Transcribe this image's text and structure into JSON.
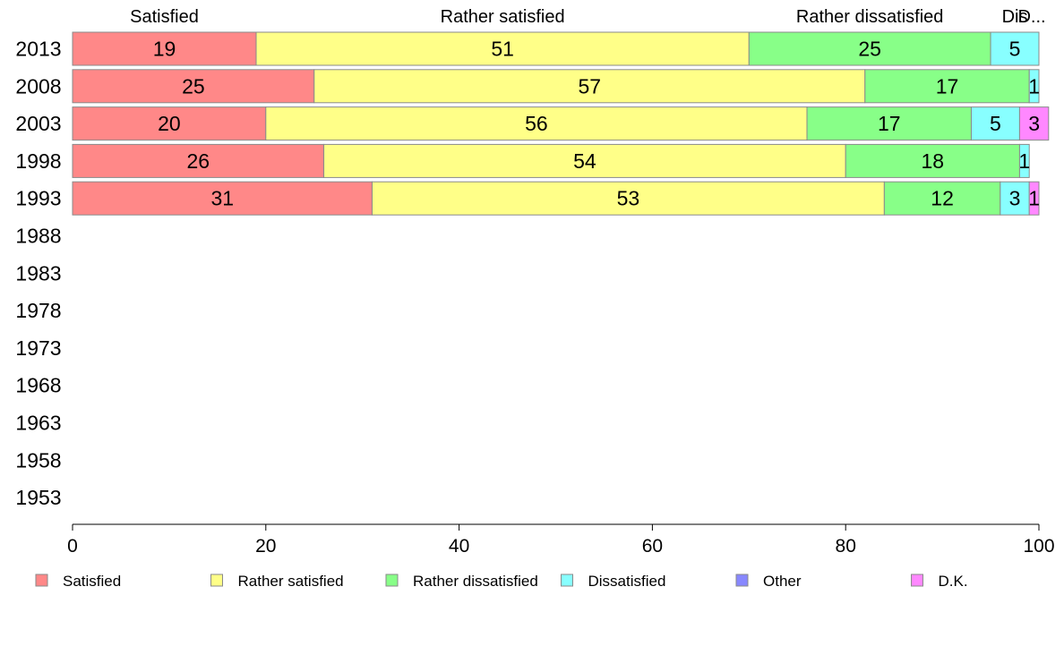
{
  "chart_data": {
    "type": "bar",
    "orientation": "horizontal",
    "stacked": true,
    "categories": [
      "2013",
      "2008",
      "2003",
      "1998",
      "1993",
      "1988",
      "1983",
      "1978",
      "1973",
      "1968",
      "1963",
      "1958",
      "1953"
    ],
    "series": [
      {
        "name": "Satisfied",
        "color": "#ff8888",
        "values": [
          19,
          25,
          20,
          26,
          31,
          null,
          null,
          null,
          null,
          null,
          null,
          null,
          null
        ]
      },
      {
        "name": "Rather satisfied",
        "color": "#ffff88",
        "values": [
          51,
          57,
          56,
          54,
          53,
          null,
          null,
          null,
          null,
          null,
          null,
          null,
          null
        ]
      },
      {
        "name": "Rather dissatisfied",
        "color": "#88ff88",
        "values": [
          25,
          17,
          17,
          18,
          12,
          null,
          null,
          null,
          null,
          null,
          null,
          null,
          null
        ]
      },
      {
        "name": "Dissatisfied",
        "color": "#88ffff",
        "values": [
          5,
          1,
          5,
          1,
          3,
          null,
          null,
          null,
          null,
          null,
          null,
          null,
          null
        ]
      },
      {
        "name": "Other",
        "color": "#8888ff",
        "values": [
          0,
          0,
          0,
          0,
          0,
          null,
          null,
          null,
          null,
          null,
          null,
          null,
          null
        ]
      },
      {
        "name": "D.K.",
        "color": "#ff88ff",
        "values": [
          0,
          0,
          3,
          0,
          1,
          null,
          null,
          null,
          null,
          null,
          null,
          null,
          null
        ]
      }
    ],
    "top_labels": [
      "Satisfied",
      "Rather satisfied",
      "Rather dissatisfied",
      "Dis",
      "D..."
    ],
    "xlim": [
      0,
      100
    ],
    "xticks": [
      0,
      20,
      40,
      60,
      80,
      100
    ],
    "grid": false,
    "legend_position": "bottom"
  }
}
